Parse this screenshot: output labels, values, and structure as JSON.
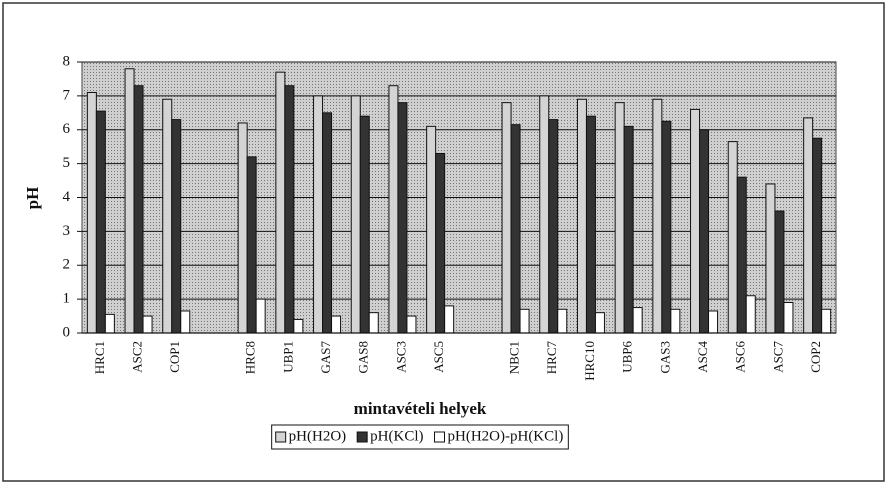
{
  "chart_data": {
    "type": "bar",
    "xlabel": "mintavételi helyek",
    "ylabel": "pH",
    "categories": [
      "HRC1",
      "ASC2",
      "COP1",
      null,
      "HRC8",
      "UBP1",
      "GAS7",
      "GAS8",
      "ASC3",
      "ASC5",
      null,
      "NBC1",
      "HRC7",
      "HRC10",
      "UBP6",
      "GAS3",
      "ASC4",
      "ASC6",
      "ASC7",
      "COP2"
    ],
    "series": [
      {
        "name": "pH(H2O)",
        "color": "#d4d4d4",
        "values": [
          7.1,
          7.8,
          6.9,
          null,
          6.2,
          7.7,
          7.0,
          7.0,
          7.3,
          6.1,
          null,
          6.8,
          7.0,
          6.9,
          6.8,
          6.9,
          6.6,
          5.65,
          4.4,
          6.35
        ]
      },
      {
        "name": "pH(KCl)",
        "color": "#333333",
        "values": [
          6.55,
          7.3,
          6.3,
          null,
          5.2,
          7.3,
          6.5,
          6.4,
          6.8,
          5.3,
          null,
          6.15,
          6.3,
          6.4,
          6.1,
          6.25,
          6.0,
          4.6,
          3.6,
          5.75
        ]
      },
      {
        "name": "pH(H2O)-pH(KCl)",
        "color": "#ffffff",
        "values": [
          0.55,
          0.5,
          0.65,
          null,
          1.0,
          0.4,
          0.5,
          0.6,
          0.5,
          0.8,
          null,
          0.7,
          0.7,
          0.6,
          0.75,
          0.7,
          0.65,
          1.1,
          0.9,
          0.7
        ]
      }
    ],
    "ylim": [
      0,
      8
    ],
    "yticks": [
      0,
      1,
      2,
      3,
      4,
      5,
      6,
      7,
      8
    ],
    "grid": true,
    "legend": "bottom"
  }
}
